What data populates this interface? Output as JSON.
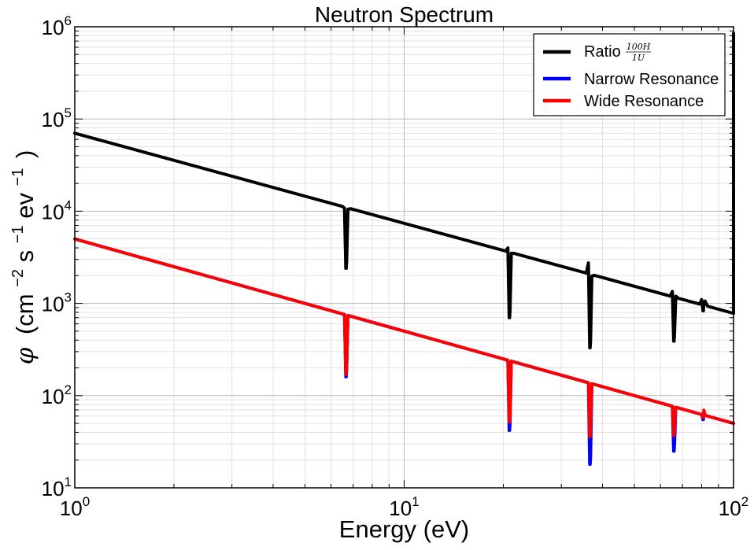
{
  "chart_data": {
    "type": "line",
    "title": "Neutron Spectrum",
    "xlabel": "Energy (eV)",
    "ylabel": {
      "phi": "φ",
      "open": "(cm",
      "sup1": "−2",
      "mid": "s",
      "sup2": "−1",
      "unit": "ev",
      "sup3": "−1",
      "close": ")"
    },
    "xscale": "log",
    "yscale": "log",
    "xlim": [
      1,
      100
    ],
    "ylim": [
      10,
      1000000
    ],
    "grid": true,
    "legend_position": "top-right",
    "x_ticks": [
      {
        "value": 1,
        "base": "10",
        "exp": "0"
      },
      {
        "value": 10,
        "base": "10",
        "exp": "1"
      },
      {
        "value": 100,
        "base": "10",
        "exp": "2"
      }
    ],
    "y_ticks": [
      {
        "value": 10,
        "base": "10",
        "exp": "1"
      },
      {
        "value": 100,
        "base": "10",
        "exp": "2"
      },
      {
        "value": 1000,
        "base": "10",
        "exp": "3"
      },
      {
        "value": 10000,
        "base": "10",
        "exp": "4"
      },
      {
        "value": 100000,
        "base": "10",
        "exp": "5"
      },
      {
        "value": 1000000,
        "base": "10",
        "exp": "6"
      }
    ],
    "resonances": [
      {
        "energy": 6.67
      },
      {
        "energy": 20.9
      },
      {
        "energy": 36.7
      },
      {
        "energy": 66.0
      },
      {
        "energy": 81.0
      }
    ],
    "series": [
      {
        "name": "Ratio",
        "legend_fraction": {
          "num": "100H",
          "den": "1U"
        },
        "color": "#000000",
        "flux_at_1eV": 70000,
        "flux_at_100eV": 780,
        "dips": [
          {
            "energy": 6.67,
            "min": 2400,
            "peak_before": 10800,
            "after": 10500
          },
          {
            "energy": 20.9,
            "min": 700,
            "peak_before": 4000,
            "after": 3500
          },
          {
            "energy": 36.7,
            "min": 330,
            "peak_before": 2750,
            "after": 1980
          },
          {
            "energy": 66.0,
            "min": 390,
            "peak_before": 1350,
            "after": 1200
          },
          {
            "energy": 81.0,
            "min": 830,
            "peak_before": 1100,
            "after": 1060
          }
        ],
        "end_spike": {
          "energy": 100,
          "value": 850000
        }
      },
      {
        "name": "Narrow Resonance",
        "color": "#0000ff",
        "flux_at_1eV": 5000,
        "flux_at_100eV": 50,
        "dips": [
          {
            "energy": 6.67,
            "min": 160
          },
          {
            "energy": 20.9,
            "min": 42
          },
          {
            "energy": 36.7,
            "min": 18
          },
          {
            "energy": 66.0,
            "min": 25
          },
          {
            "energy": 81.0,
            "min": 55
          }
        ]
      },
      {
        "name": "Wide Resonance",
        "color": "#ff0000",
        "flux_at_1eV": 5000,
        "flux_at_100eV": 50,
        "dips": [
          {
            "energy": 6.67,
            "min": 170
          },
          {
            "energy": 20.9,
            "min": 52
          },
          {
            "energy": 36.7,
            "min": 36
          },
          {
            "energy": 66.0,
            "min": 37
          },
          {
            "energy": 81.0,
            "min": 58
          }
        ]
      }
    ]
  }
}
